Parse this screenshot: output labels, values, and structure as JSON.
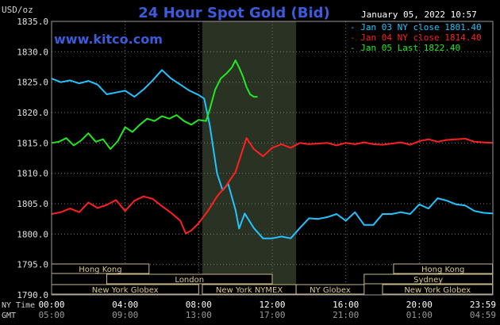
{
  "chart_data": {
    "type": "line",
    "title": "24 Hour Spot Gold (Bid)",
    "unit_label": "USD/oz",
    "watermark": "www.kitco.com",
    "timestamp": "January 05, 2022 10:57",
    "ylim": [
      1790.0,
      1835.0
    ],
    "y_ticks": [
      "1835.0",
      "1830.0",
      "1825.0",
      "1820.0",
      "1815.0",
      "1810.0",
      "1805.0",
      "1800.0",
      "1795.0",
      "1790.0"
    ],
    "x_axis": {
      "ny_label": "NY Time",
      "gmt_label": "GMT",
      "ny_ticks": [
        "00:00",
        "04:00",
        "08:00",
        "12:00",
        "16:00",
        "20:00",
        "23:59"
      ],
      "gmt_ticks": [
        "05:00",
        "09:00",
        "13:00",
        "17:00",
        "21:00",
        "01:00",
        "04:59"
      ]
    },
    "series": [
      {
        "name": "Jan 03 NY close 1801.40",
        "color": "#22c3ff",
        "points": [
          [
            0,
            1825.6
          ],
          [
            0.5,
            1825.0
          ],
          [
            1,
            1825.3
          ],
          [
            1.5,
            1824.8
          ],
          [
            2,
            1825.2
          ],
          [
            2.5,
            1824.6
          ],
          [
            3,
            1823.0
          ],
          [
            3.5,
            1823.3
          ],
          [
            4,
            1823.6
          ],
          [
            4.5,
            1822.6
          ],
          [
            5,
            1823.8
          ],
          [
            5.5,
            1825.3
          ],
          [
            6,
            1827.0
          ],
          [
            6.5,
            1825.6
          ],
          [
            7,
            1824.6
          ],
          [
            7.5,
            1823.6
          ],
          [
            8,
            1822.9
          ],
          [
            8.3,
            1822.3
          ],
          [
            8.6,
            1818.0
          ],
          [
            9,
            1810.0
          ],
          [
            9.3,
            1807.2
          ],
          [
            9.6,
            1808.3
          ],
          [
            10,
            1804.0
          ],
          [
            10.2,
            1800.9
          ],
          [
            10.5,
            1803.4
          ],
          [
            11,
            1801.0
          ],
          [
            11.5,
            1799.3
          ],
          [
            12,
            1799.3
          ],
          [
            12.5,
            1799.6
          ],
          [
            13,
            1799.3
          ],
          [
            13.5,
            1801.0
          ],
          [
            14,
            1802.6
          ],
          [
            14.5,
            1802.5
          ],
          [
            15,
            1802.8
          ],
          [
            15.5,
            1803.3
          ],
          [
            16,
            1802.2
          ],
          [
            16.5,
            1803.6
          ],
          [
            17,
            1801.5
          ],
          [
            17.5,
            1801.5
          ],
          [
            18,
            1803.3
          ],
          [
            18.5,
            1803.3
          ],
          [
            19,
            1803.6
          ],
          [
            19.5,
            1803.3
          ],
          [
            20,
            1804.9
          ],
          [
            20.5,
            1804.2
          ],
          [
            21,
            1805.9
          ],
          [
            21.5,
            1805.5
          ],
          [
            22,
            1804.9
          ],
          [
            22.5,
            1804.7
          ],
          [
            23,
            1803.8
          ],
          [
            23.5,
            1803.5
          ],
          [
            23.98,
            1803.4
          ]
        ]
      },
      {
        "name": "Jan 04 NY close 1814.40",
        "color": "#ff2020",
        "points": [
          [
            0,
            1803.3
          ],
          [
            0.5,
            1803.6
          ],
          [
            1,
            1804.2
          ],
          [
            1.5,
            1803.6
          ],
          [
            2,
            1805.2
          ],
          [
            2.5,
            1804.3
          ],
          [
            3,
            1804.8
          ],
          [
            3.5,
            1805.6
          ],
          [
            4,
            1803.8
          ],
          [
            4.5,
            1805.5
          ],
          [
            5,
            1806.2
          ],
          [
            5.5,
            1805.8
          ],
          [
            6,
            1804.6
          ],
          [
            6.5,
            1803.5
          ],
          [
            7,
            1802.2
          ],
          [
            7.3,
            1800.1
          ],
          [
            7.6,
            1800.6
          ],
          [
            8,
            1801.8
          ],
          [
            8.5,
            1803.8
          ],
          [
            9,
            1806.2
          ],
          [
            9.5,
            1808.0
          ],
          [
            10,
            1810.2
          ],
          [
            10.3,
            1813.0
          ],
          [
            10.6,
            1815.8
          ],
          [
            11,
            1814.0
          ],
          [
            11.5,
            1812.8
          ],
          [
            12,
            1814.2
          ],
          [
            12.5,
            1814.8
          ],
          [
            13,
            1814.2
          ],
          [
            13.5,
            1815.0
          ],
          [
            14,
            1814.8
          ],
          [
            14.5,
            1814.9
          ],
          [
            15,
            1815.0
          ],
          [
            15.5,
            1814.6
          ],
          [
            16,
            1815.0
          ],
          [
            16.5,
            1814.8
          ],
          [
            17,
            1815.1
          ],
          [
            17.5,
            1814.8
          ],
          [
            18,
            1814.7
          ],
          [
            18.5,
            1814.9
          ],
          [
            19,
            1815.1
          ],
          [
            19.5,
            1814.7
          ],
          [
            20,
            1815.3
          ],
          [
            20.5,
            1815.6
          ],
          [
            21,
            1815.2
          ],
          [
            21.5,
            1815.5
          ],
          [
            22,
            1815.6
          ],
          [
            22.5,
            1815.7
          ],
          [
            23,
            1815.2
          ],
          [
            23.5,
            1815.1
          ],
          [
            23.98,
            1815.0
          ]
        ]
      },
      {
        "name": "Jan 05 Last 1822.40",
        "color": "#22e822",
        "points": [
          [
            0,
            1815.0
          ],
          [
            0.4,
            1815.2
          ],
          [
            0.8,
            1815.8
          ],
          [
            1.2,
            1814.6
          ],
          [
            1.6,
            1815.4
          ],
          [
            2,
            1816.6
          ],
          [
            2.4,
            1815.2
          ],
          [
            2.8,
            1815.6
          ],
          [
            3.2,
            1814.0
          ],
          [
            3.6,
            1815.3
          ],
          [
            4,
            1817.6
          ],
          [
            4.4,
            1816.8
          ],
          [
            4.8,
            1818.0
          ],
          [
            5.2,
            1819.0
          ],
          [
            5.6,
            1818.6
          ],
          [
            6,
            1819.4
          ],
          [
            6.4,
            1819.0
          ],
          [
            6.8,
            1819.6
          ],
          [
            7.2,
            1818.6
          ],
          [
            7.6,
            1818.0
          ],
          [
            8,
            1818.8
          ],
          [
            8.4,
            1818.6
          ],
          [
            8.6,
            1820.5
          ],
          [
            8.9,
            1823.8
          ],
          [
            9.2,
            1825.6
          ],
          [
            9.5,
            1826.4
          ],
          [
            9.8,
            1827.4
          ],
          [
            10.0,
            1828.6
          ],
          [
            10.2,
            1827.4
          ],
          [
            10.4,
            1826.0
          ],
          [
            10.6,
            1824.2
          ],
          [
            10.8,
            1823.0
          ],
          [
            11.0,
            1822.6
          ],
          [
            11.2,
            1822.6
          ]
        ]
      }
    ]
  },
  "sessions": [
    {
      "label": "Hong Kong",
      "row": 0,
      "start": 0.0,
      "end": 5.3
    },
    {
      "label": "London",
      "row": 1,
      "start": 3.0,
      "end": 12.0
    },
    {
      "label": "New York Globex",
      "row": 2,
      "start": 0.0,
      "end": 8.0
    },
    {
      "label": "New York NYMEX",
      "row": 2,
      "start": 8.2,
      "end": 13.3
    },
    {
      "label": "NY Globex",
      "row": 2,
      "start": 13.3,
      "end": 17.0
    },
    {
      "label": "Hong Kong",
      "row": 0,
      "start": 18.6,
      "end": 23.98
    },
    {
      "label": "Sydney",
      "row": 1,
      "start": 17.0,
      "end": 23.98
    },
    {
      "label": "New York Globex",
      "row": 2,
      "start": 18.0,
      "end": 23.98
    }
  ],
  "shaded_range": [
    8.2,
    13.3
  ]
}
